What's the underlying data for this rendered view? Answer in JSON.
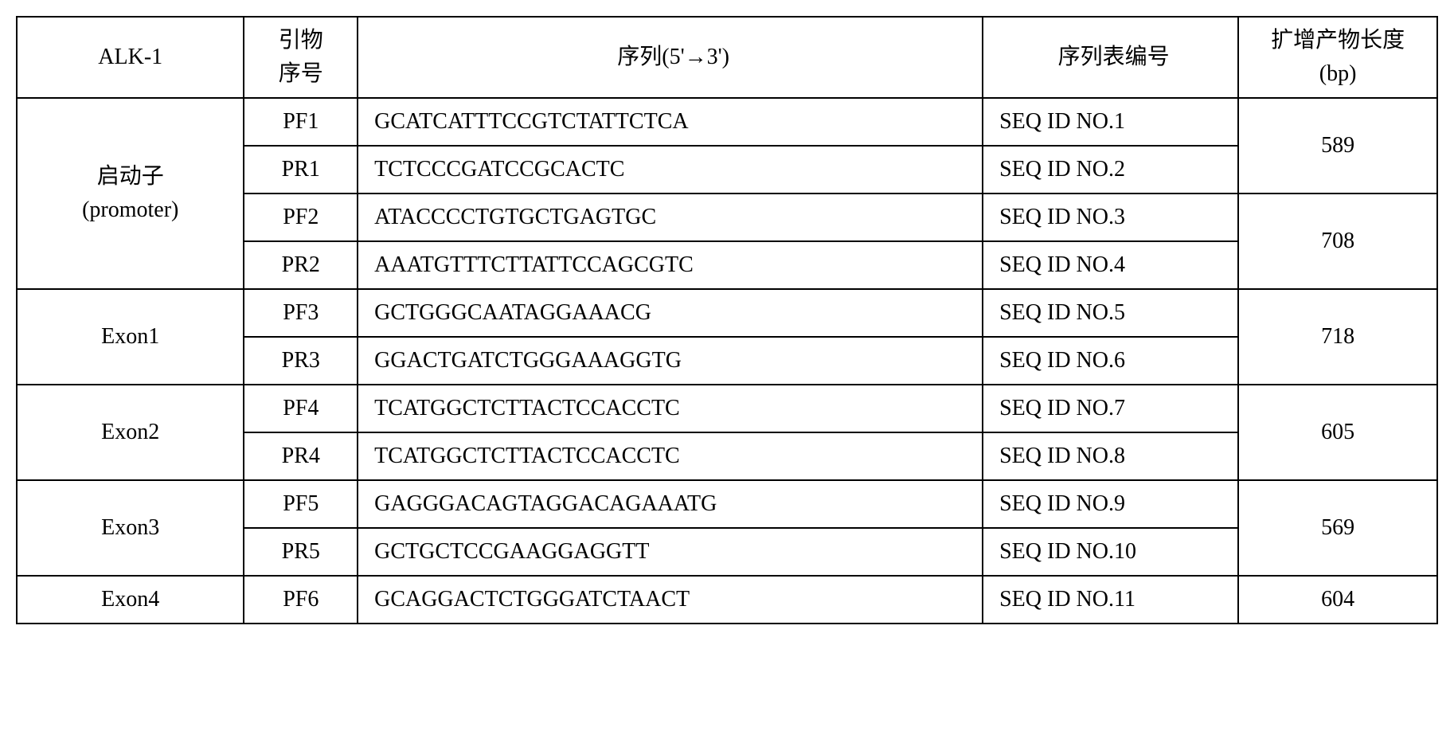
{
  "headers": {
    "alk1": "ALK-1",
    "primer_id": "引物\n序号",
    "sequence": "序列(5'→3')",
    "seq_table_id": "序列表编号",
    "product_length": "扩增产物长度\n(bp)"
  },
  "regions": {
    "promoter_line1": "启动子",
    "promoter_line2": "(promoter)",
    "exon1": "Exon1",
    "exon2": "Exon2",
    "exon3": "Exon3",
    "exon4": "Exon4"
  },
  "rows": {
    "r1": {
      "primer_id": "PF1",
      "sequence": "GCATCATTTCCGTCTATTCTCA",
      "seq_id": "SEQ ID NO.1"
    },
    "r2": {
      "primer_id": "PR1",
      "sequence": "TCTCCCGATCCGCACTC",
      "seq_id": "SEQ ID NO.2"
    },
    "r3": {
      "primer_id": "PF2",
      "sequence": "ATACCCCTGTGCTGAGTGC",
      "seq_id": "SEQ ID NO.3"
    },
    "r4": {
      "primer_id": "PR2",
      "sequence": "AAATGTTTCTTATTCCAGCGTC",
      "seq_id": "SEQ ID NO.4"
    },
    "r5": {
      "primer_id": "PF3",
      "sequence": "GCTGGGCAATAGGAAACG",
      "seq_id": "SEQ ID NO.5"
    },
    "r6": {
      "primer_id": "PR3",
      "sequence": "GGACTGATCTGGGAAAGGTG",
      "seq_id": "SEQ ID NO.6"
    },
    "r7": {
      "primer_id": "PF4",
      "sequence": "TCATGGCTCTTACTCCACCTC",
      "seq_id": "SEQ ID NO.7"
    },
    "r8": {
      "primer_id": "PR4",
      "sequence": "TCATGGCTCTTACTCCACCTC",
      "seq_id": "SEQ ID NO.8"
    },
    "r9": {
      "primer_id": "PF5",
      "sequence": "GAGGGACAGTAGGACAGAAATG",
      "seq_id": "SEQ ID NO.9"
    },
    "r10": {
      "primer_id": "PR5",
      "sequence": "GCTGCTCCGAAGGAGGTT",
      "seq_id": "SEQ ID NO.10"
    },
    "r11": {
      "primer_id": "PF6",
      "sequence": "GCAGGACTCTGGGATCTAACT",
      "seq_id": "SEQ ID NO.11"
    }
  },
  "lengths": {
    "l1": "589",
    "l2": "708",
    "l3": "718",
    "l4": "605",
    "l5": "569",
    "l6": "604"
  }
}
